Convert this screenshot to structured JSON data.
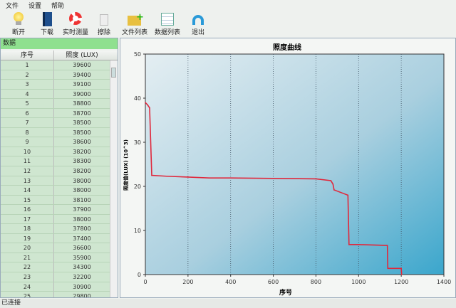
{
  "menu": [
    "文件",
    "设置",
    "帮助"
  ],
  "toolbar": [
    {
      "label": "断开",
      "icon": "lightbulb-icon"
    },
    {
      "label": "下载",
      "icon": "book-download-icon"
    },
    {
      "label": "实时测量",
      "icon": "lifebuoy-icon"
    },
    {
      "label": "擦除",
      "icon": "trash-icon"
    },
    {
      "label": "文件列表",
      "icon": "folder-add-icon"
    },
    {
      "label": "数据列表",
      "icon": "table-edit-icon"
    },
    {
      "label": "退出",
      "icon": "exit-arrow-icon"
    }
  ],
  "panel": {
    "title": "数据",
    "col1": "序号",
    "col2": "照度 (LUX)",
    "rows": [
      [
        "1",
        "39600"
      ],
      [
        "2",
        "39400"
      ],
      [
        "3",
        "39100"
      ],
      [
        "4",
        "39000"
      ],
      [
        "5",
        "38800"
      ],
      [
        "6",
        "38700"
      ],
      [
        "7",
        "38500"
      ],
      [
        "8",
        "38500"
      ],
      [
        "9",
        "38600"
      ],
      [
        "10",
        "38200"
      ],
      [
        "11",
        "38300"
      ],
      [
        "12",
        "38200"
      ],
      [
        "13",
        "38000"
      ],
      [
        "14",
        "38000"
      ],
      [
        "15",
        "38100"
      ],
      [
        "16",
        "37900"
      ],
      [
        "17",
        "38000"
      ],
      [
        "18",
        "37800"
      ],
      [
        "19",
        "37400"
      ],
      [
        "20",
        "36600"
      ],
      [
        "21",
        "35900"
      ],
      [
        "22",
        "34300"
      ],
      [
        "23",
        "32200"
      ],
      [
        "24",
        "30900"
      ],
      [
        "25",
        "29800"
      ]
    ]
  },
  "status": "已连接",
  "colors": {
    "line": "#e0283c",
    "panel_header": "#8fe08f"
  },
  "chart_data": {
    "type": "line",
    "title": "照度曲线",
    "xlabel": "序号",
    "ylabel": "照度值(LUX) (10^3)",
    "xlim": [
      0,
      1400
    ],
    "ylim": [
      0,
      50
    ],
    "xticks": [
      "0",
      "200",
      "400",
      "600",
      "800",
      "1000",
      "1200",
      "1400"
    ],
    "yticks": [
      "0",
      "10",
      "20",
      "30",
      "40",
      "50"
    ],
    "grid": "vertical dotted",
    "x": [
      0,
      10,
      20,
      30,
      100,
      200,
      300,
      400,
      600,
      800,
      870,
      880,
      885,
      950,
      955,
      1000,
      1135,
      1137,
      1200,
      1202
    ],
    "y": [
      39,
      38.5,
      37.8,
      22.5,
      22.3,
      22.1,
      21.9,
      21.9,
      21.8,
      21.7,
      21.3,
      20.5,
      19.2,
      18,
      6.8,
      6.8,
      6.6,
      1.4,
      1.4,
      0
    ]
  }
}
